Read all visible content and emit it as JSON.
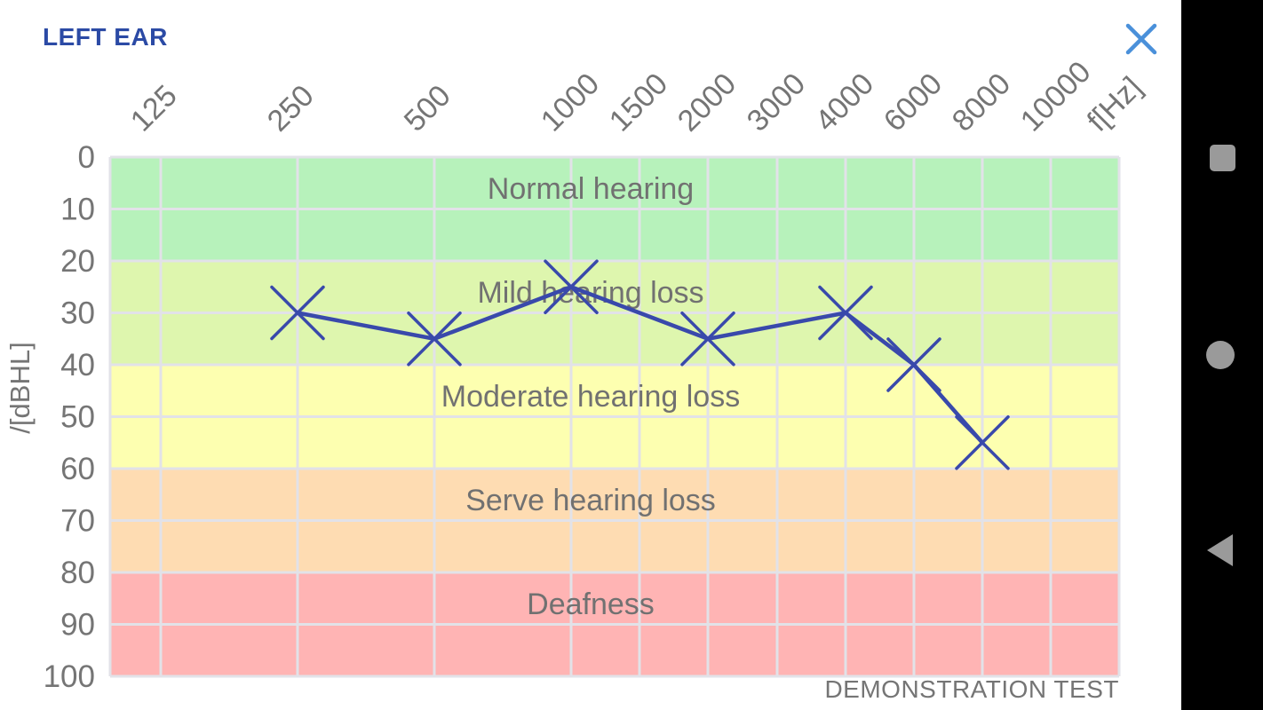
{
  "header": {
    "title": "LEFT EAR"
  },
  "colors": {
    "title_blue": "#2b4aa5",
    "close_blue": "#4a90da",
    "axis_text_gray": "#757575",
    "band_label_gray": "#717171",
    "grid_gray": "#e2e2e8",
    "series_indigo": "#3949ab",
    "nav_icon_gray": "#9a9a9a",
    "nav_bg": "#000000"
  },
  "chart_data": {
    "type": "line",
    "title": "LEFT EAR",
    "x_ticks": [
      125,
      250,
      500,
      1000,
      1500,
      2000,
      3000,
      4000,
      6000,
      8000,
      10000
    ],
    "x_unit_label": "f[Hz]",
    "y_ticks": [
      0,
      10,
      20,
      30,
      40,
      50,
      60,
      70,
      80,
      90,
      100
    ],
    "y_axis_label": "/[dBHL]",
    "ylim": [
      0,
      100
    ],
    "grid": true,
    "series": [
      {
        "name": "left ear hearing threshold",
        "marker": "x",
        "color": "#3949ab",
        "points": [
          {
            "freq_hz": 250,
            "dbhl": 30
          },
          {
            "freq_hz": 500,
            "dbhl": 35
          },
          {
            "freq_hz": 1000,
            "dbhl": 25
          },
          {
            "freq_hz": 2000,
            "dbhl": 35
          },
          {
            "freq_hz": 4000,
            "dbhl": 30
          },
          {
            "freq_hz": 6000,
            "dbhl": 40
          },
          {
            "freq_hz": 8000,
            "dbhl": 55
          }
        ]
      }
    ],
    "bands": [
      {
        "label": "Normal hearing",
        "from_db": 0,
        "to_db": 20,
        "color": "#b7f2bb"
      },
      {
        "label": "Mild hearing loss",
        "from_db": 20,
        "to_db": 40,
        "color": "#def6ae"
      },
      {
        "label": "Moderate hearing loss",
        "from_db": 40,
        "to_db": 60,
        "color": "#fdffb0"
      },
      {
        "label": "Serve hearing loss",
        "from_db": 60,
        "to_db": 80,
        "color": "#fedcb2"
      },
      {
        "label": "Deafness",
        "from_db": 80,
        "to_db": 100,
        "color": "#ffb4b4"
      }
    ],
    "footnote": "DEMONSTRATION TEST"
  },
  "android_nav": {
    "buttons": [
      {
        "name": "recents",
        "icon": "square"
      },
      {
        "name": "home",
        "icon": "circle"
      },
      {
        "name": "back",
        "icon": "triangle-left"
      }
    ]
  }
}
